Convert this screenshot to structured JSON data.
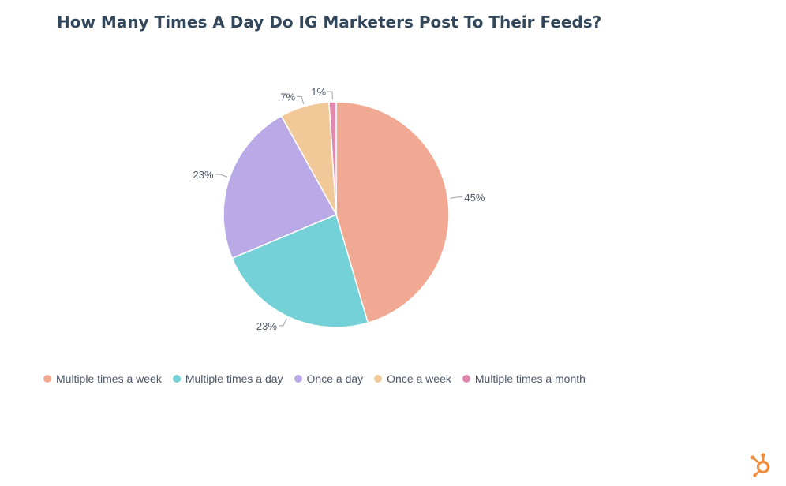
{
  "chart_data": {
    "type": "pie",
    "title": "How Many Times A Day Do IG Marketers Post To Their Feeds?",
    "categories": [
      "Multiple times a week",
      "Multiple times a day",
      "Once a day",
      "Once a week",
      "Multiple times a month"
    ],
    "values": [
      45,
      23,
      23,
      7,
      1
    ],
    "data_labels": [
      "45%",
      "23%",
      "23%",
      "7%",
      "1%"
    ],
    "colors": [
      "#f2a994",
      "#73d1d7",
      "#b9a9e6",
      "#f1c897",
      "#e088ad"
    ],
    "legend_position": "bottom"
  },
  "branding": {
    "logo_icon": "hubspot-sprocket-icon",
    "logo_color": "#f28c3a"
  }
}
